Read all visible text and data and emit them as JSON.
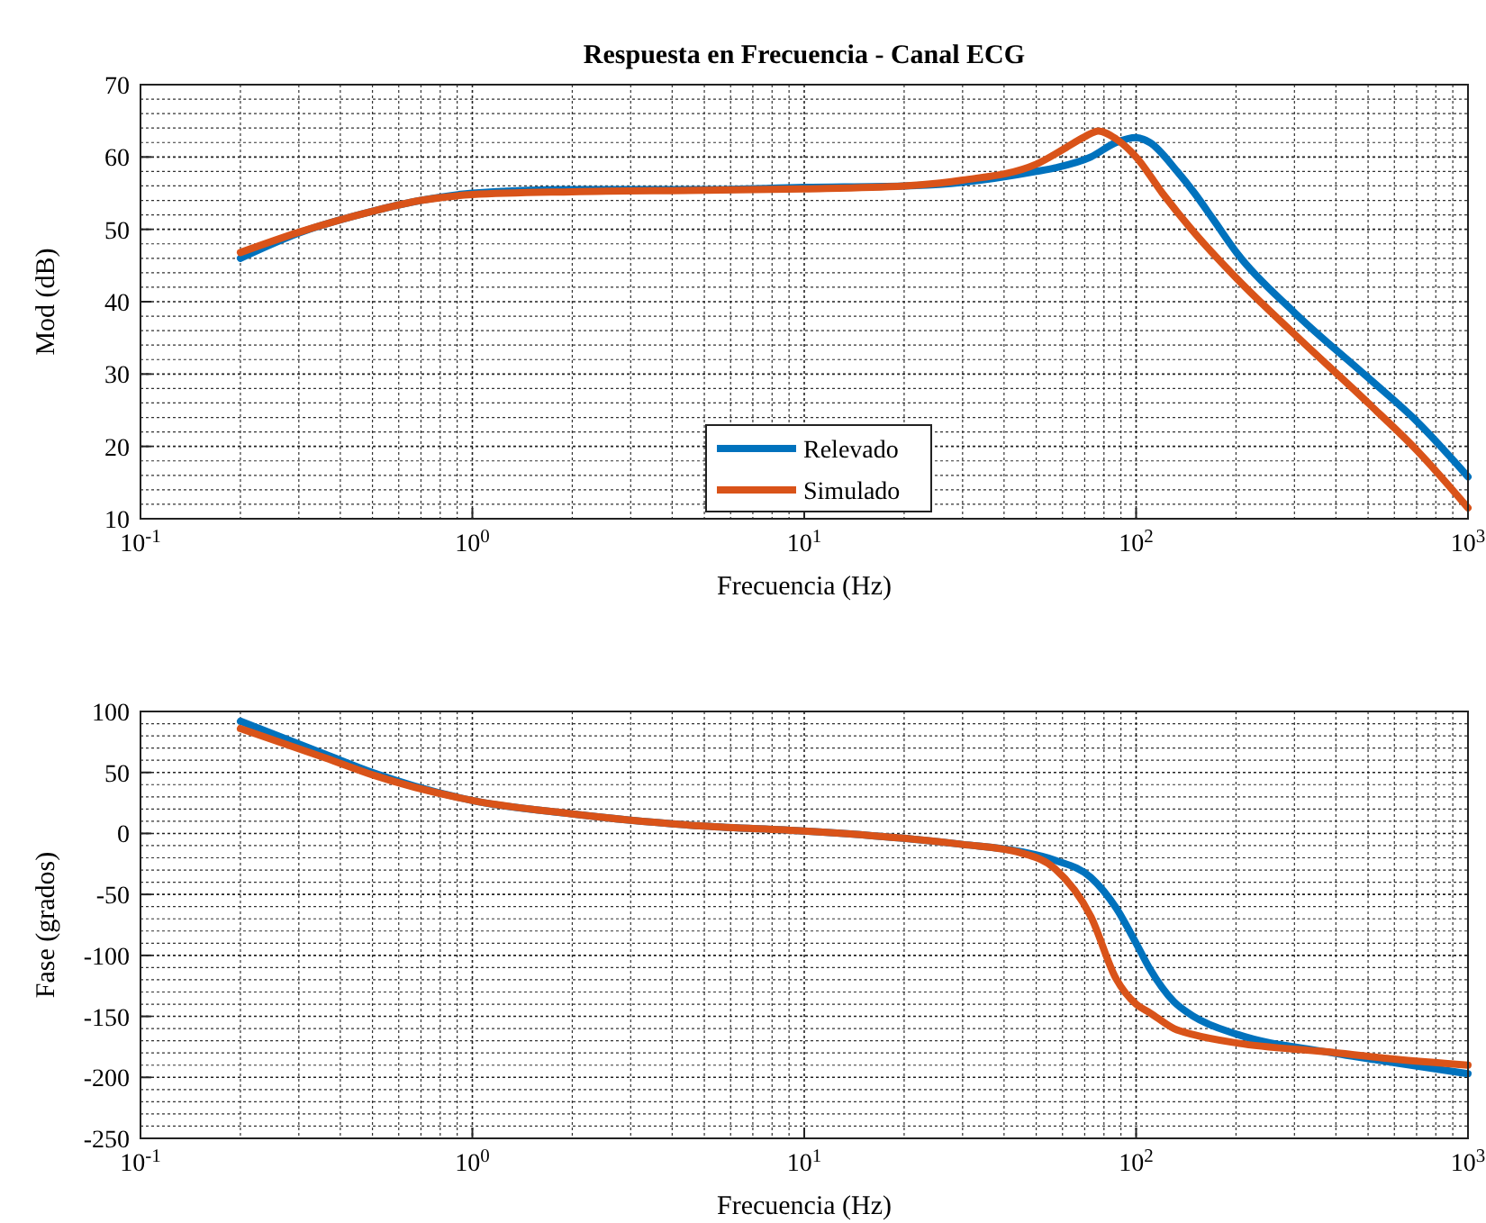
{
  "chart_data": [
    {
      "type": "line",
      "title": "Respuesta en Frecuencia - Canal ECG",
      "xlabel": "Frecuencia (Hz)",
      "ylabel": "Mod (dB)",
      "log": "x",
      "xlim": [
        0.1,
        1000
      ],
      "xticks": [
        {
          "value": 0.1,
          "label": "10$^{-1}$"
        },
        {
          "value": 1,
          "label": "10$^{0}$"
        },
        {
          "value": 10,
          "label": "10$^{1}$"
        },
        {
          "value": 100,
          "label": "10$^{2}$"
        },
        {
          "value": 1000,
          "label": "10$^{3}$"
        }
      ],
      "ylim": [
        10,
        70
      ],
      "yticks": [
        10,
        20,
        30,
        40,
        50,
        60,
        70
      ],
      "grid": true,
      "legend": "bottom",
      "line_style": "solid",
      "series": [
        {
          "name": "Relevado",
          "color": "#0072bd",
          "x": [
            0.2,
            0.3,
            0.5,
            0.7,
            1,
            2,
            5,
            10,
            20,
            30,
            50,
            57,
            73,
            87,
            100,
            110,
            133,
            150,
            170,
            203,
            300,
            500,
            700,
            1000
          ],
          "values": [
            46,
            49.5,
            52.5,
            54,
            55,
            55.5,
            55.5,
            55.8,
            56,
            56.5,
            58,
            58.5,
            60,
            62,
            62.7,
            62,
            58,
            55,
            51.5,
            46.5,
            38.5,
            29.5,
            23.5,
            15.8
          ]
        },
        {
          "name": "Simulado",
          "color": "#d95319",
          "x": [
            0.2,
            0.3,
            0.5,
            0.7,
            1,
            2,
            5,
            10,
            20,
            30,
            50,
            60,
            70,
            77,
            87,
            100,
            120,
            150,
            203,
            300,
            500,
            700,
            1000
          ],
          "values": [
            46.8,
            49.6,
            52.5,
            54,
            54.8,
            55.2,
            55.4,
            55.6,
            56,
            56.8,
            59,
            61,
            62.8,
            63.6,
            62.5,
            60,
            55,
            49.5,
            43,
            35.5,
            26,
            19.5,
            11.5
          ]
        }
      ]
    },
    {
      "type": "line",
      "xlabel": "Frecuencia (Hz)",
      "ylabel": "Fase (grados)",
      "log": "x",
      "xlim": [
        0.1,
        1000
      ],
      "xticks": [
        {
          "value": 0.1,
          "label": "10$^{-1}$"
        },
        {
          "value": 1,
          "label": "10$^{0}$"
        },
        {
          "value": 10,
          "label": "10$^{1}$"
        },
        {
          "value": 100,
          "label": "10$^{2}$"
        },
        {
          "value": 1000,
          "label": "10$^{3}$"
        }
      ],
      "ylim": [
        -250,
        100
      ],
      "yticks": [
        -250,
        -200,
        -150,
        -100,
        -50,
        0,
        50,
        100
      ],
      "grid": true,
      "line_style": "solid",
      "series": [
        {
          "color": "#0072bd",
          "x": [
            0.2,
            0.36,
            0.5,
            1,
            2,
            2.95,
            5,
            10,
            20,
            30,
            45,
            57,
            73,
            87,
            100,
            110,
            130,
            149,
            203,
            372,
            600,
            1000
          ],
          "values": [
            92,
            65,
            50,
            27,
            16,
            11,
            6,
            2,
            -4,
            -9,
            -15,
            -22,
            -36,
            -61,
            -90,
            -111,
            -138,
            -150,
            -165,
            -179,
            -188,
            -197
          ]
        },
        {
          "color": "#d95319",
          "x": [
            0.2,
            0.36,
            0.5,
            1,
            2,
            2.95,
            5,
            10,
            20,
            30,
            45,
            57,
            73,
            87,
            100,
            110,
            130,
            149,
            203,
            372,
            600,
            1000
          ],
          "values": [
            86,
            62,
            48,
            27,
            16,
            11,
            6,
            2,
            -4,
            -9,
            -16,
            -29,
            -68,
            -119,
            -140,
            -147,
            -160,
            -165,
            -172,
            -179,
            -185,
            -190
          ]
        }
      ]
    }
  ]
}
